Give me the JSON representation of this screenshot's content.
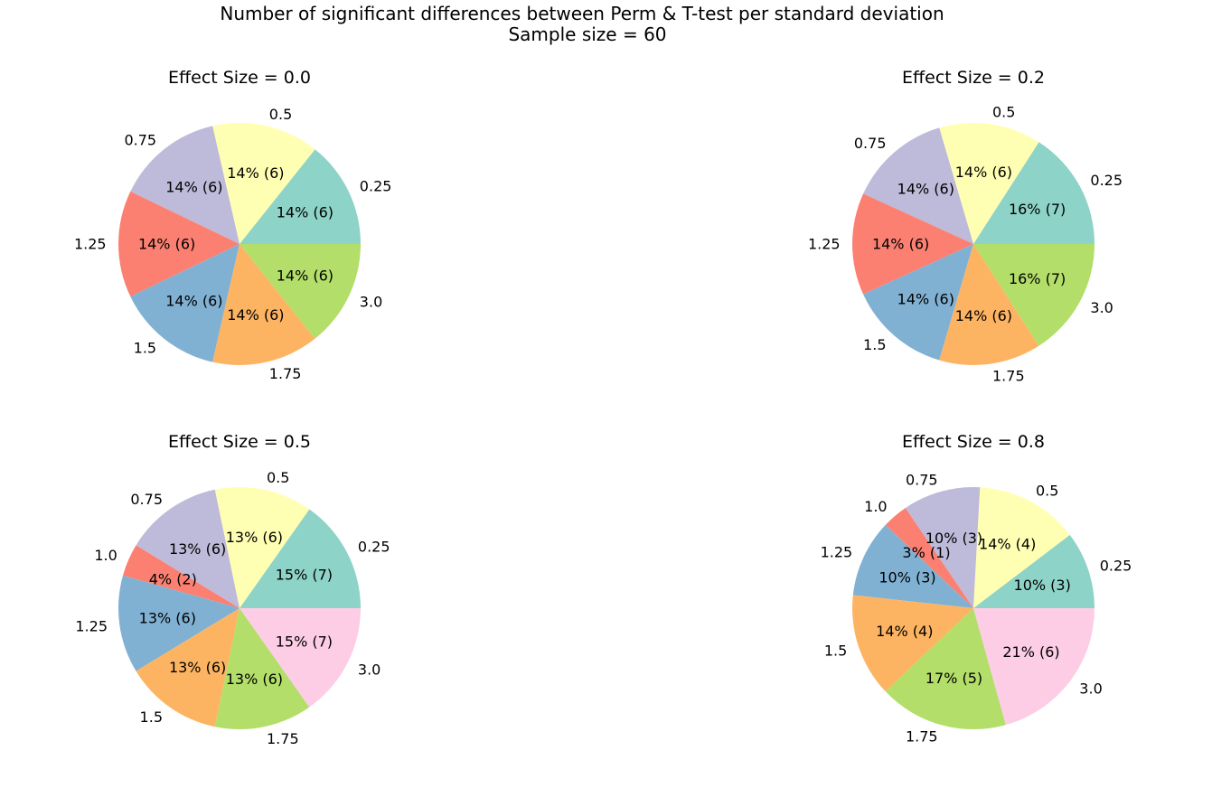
{
  "figure": {
    "title_line1": "Number of significant differences between Perm & T-test per standard deviation",
    "title_line2": "Sample size = 60"
  },
  "colors": {
    "0.25": "#8dd3c7",
    "0.5": "#ffffb3",
    "0.75": "#bebada",
    "1.0": "#fb8072",
    "1.25": "#80b1d3",
    "1.5": "#fdb462",
    "1.75": "#b3de69",
    "3.0": "#fccde5"
  },
  "chart_data": [
    {
      "type": "pie",
      "title": "Effect Size =  0.0",
      "labels": [
        "0.25",
        "0.5",
        "0.75",
        "1.25",
        "1.5",
        "1.75",
        "3.0"
      ],
      "slice_colors": [
        "#8dd3c7",
        "#ffffb3",
        "#bebada",
        "#fb8072",
        "#80b1d3",
        "#fdb462",
        "#b3de69"
      ],
      "values": [
        6,
        6,
        6,
        6,
        6,
        6,
        6
      ],
      "autopct": [
        "14% (6)",
        "14% (6)",
        "14% (6)",
        "14% (6)",
        "14% (6)",
        "14% (6)",
        "14% (6)"
      ]
    },
    {
      "type": "pie",
      "title": "Effect Size =  0.2",
      "labels": [
        "0.25",
        "0.5",
        "0.75",
        "1.25",
        "1.5",
        "1.75",
        "3.0"
      ],
      "slice_colors": [
        "#8dd3c7",
        "#ffffb3",
        "#bebada",
        "#fb8072",
        "#80b1d3",
        "#fdb462",
        "#b3de69"
      ],
      "values": [
        7,
        6,
        6,
        6,
        6,
        6,
        7
      ],
      "autopct": [
        "16% (7)",
        "14% (6)",
        "14% (6)",
        "14% (6)",
        "14% (6)",
        "14% (6)",
        "16% (7)"
      ]
    },
    {
      "type": "pie",
      "title": "Effect Size =  0.5",
      "labels": [
        "0.25",
        "0.5",
        "0.75",
        "1.0",
        "1.25",
        "1.5",
        "1.75",
        "3.0"
      ],
      "slice_colors": [
        "#8dd3c7",
        "#ffffb3",
        "#bebada",
        "#fb8072",
        "#80b1d3",
        "#fdb462",
        "#b3de69",
        "#fccde5"
      ],
      "values": [
        7,
        6,
        6,
        2,
        6,
        6,
        6,
        7
      ],
      "autopct": [
        "15% (7)",
        "13% (6)",
        "13% (6)",
        "4% (2)",
        "13% (6)",
        "13% (6)",
        "13% (6)",
        "15% (7)"
      ]
    },
    {
      "type": "pie",
      "title": "Effect Size =  0.8",
      "labels": [
        "0.25",
        "0.5",
        "0.75",
        "1.0",
        "1.25",
        "1.5",
        "1.75",
        "3.0"
      ],
      "slice_colors": [
        "#8dd3c7",
        "#ffffb3",
        "#bebada",
        "#fb8072",
        "#80b1d3",
        "#fdb462",
        "#b3de69",
        "#fccde5"
      ],
      "values": [
        3,
        4,
        3,
        1,
        3,
        4,
        5,
        6
      ],
      "autopct": [
        "10% (3)",
        "14% (4)",
        "10% (3)",
        "3% (1)",
        "10% (3)",
        "14% (4)",
        "17% (5)",
        "21% (6)"
      ]
    }
  ]
}
